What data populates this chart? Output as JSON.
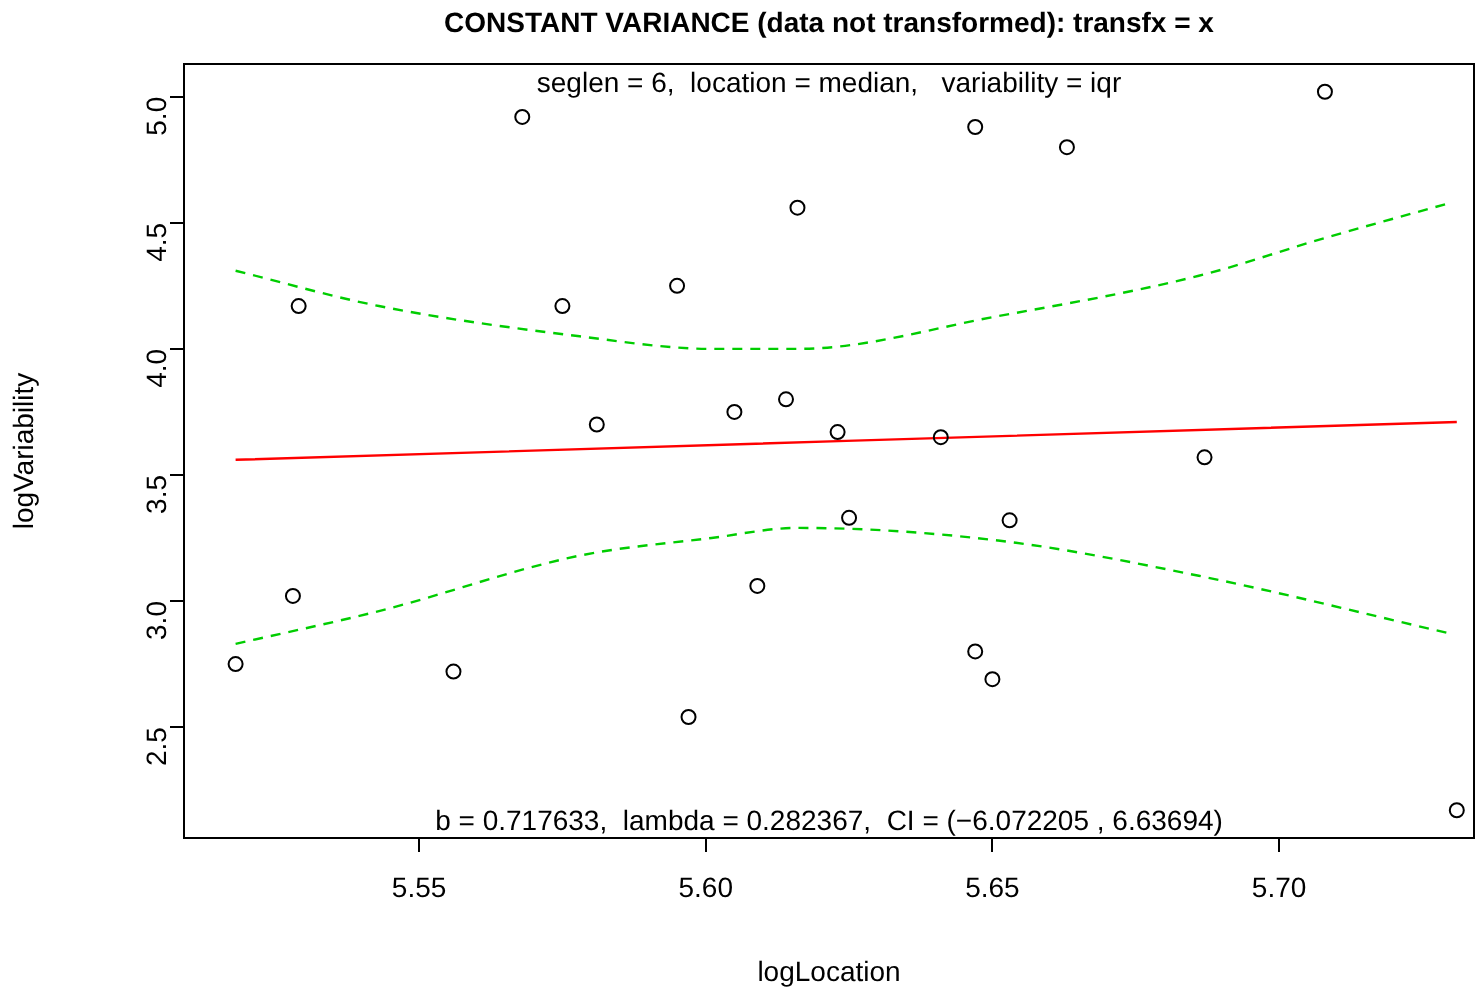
{
  "chart_data": {
    "type": "scatter",
    "title": "CONSTANT VARIANCE (data not transformed): transfx = x",
    "xlabel": "logLocation",
    "ylabel": "logVariability",
    "annotations": [
      "seglen = 6,  location = median,   variability = iqr",
      "b = 0.717633,  lambda = 0.282367,  CI = (−6.072205 , 6.63694)"
    ],
    "xlim": [
      5.509,
      5.734
    ],
    "ylim": [
      2.06,
      5.13
    ],
    "xticks": [
      5.55,
      {
        "value": 5.6,
        "label": "5.60"
      },
      5.65,
      {
        "value": 5.7,
        "label": "5.70"
      }
    ],
    "yticks": [
      2.5,
      {
        "value": 3,
        "label": "3.0"
      },
      3.5,
      {
        "value": 4,
        "label": "4.0"
      },
      4.5,
      {
        "value": 5,
        "label": "5.0"
      }
    ],
    "grid": false,
    "legend": false,
    "marker": "circle",
    "series": [
      {
        "color": "#000000",
        "x": [
          5.518,
          5.528,
          5.529,
          5.556,
          5.568,
          5.575,
          5.581,
          5.595,
          5.597,
          5.605,
          5.609,
          5.614,
          5.616,
          5.623,
          5.625,
          5.641,
          5.647,
          5.647,
          5.65,
          5.653,
          5.663,
          5.687,
          5.708,
          5.731
        ],
        "values": [
          2.75,
          3.02,
          4.17,
          2.72,
          4.92,
          4.17,
          3.7,
          4.25,
          2.54,
          3.75,
          3.06,
          3.8,
          4.56,
          3.67,
          3.33,
          3.65,
          2.8,
          4.88,
          2.69,
          3.32,
          4.8,
          3.57,
          5.02,
          2.17
        ]
      },
      {
        "type": "line",
        "color": "#ff0000",
        "marker": "none",
        "line_style": "solid",
        "x": [
          5.518,
          5.731
        ],
        "values": [
          3.56,
          3.71
        ]
      },
      {
        "type": "line",
        "color": "#00cd00",
        "marker": "none",
        "line_style": "dashed",
        "x": [
          5.518,
          5.543,
          5.578,
          5.601,
          5.616,
          5.651,
          5.686,
          5.708,
          5.73
        ],
        "values": [
          4.31,
          4.17,
          4.05,
          4.0,
          4.0,
          4.13,
          4.29,
          4.44,
          4.58
        ]
      },
      {
        "type": "line",
        "color": "#00cd00",
        "marker": "none",
        "line_style": "dashed",
        "x": [
          5.518,
          5.543,
          5.578,
          5.601,
          5.616,
          5.651,
          5.686,
          5.73
        ],
        "values": [
          2.83,
          2.96,
          3.18,
          3.25,
          3.29,
          3.24,
          3.1,
          2.87
        ]
      }
    ]
  }
}
